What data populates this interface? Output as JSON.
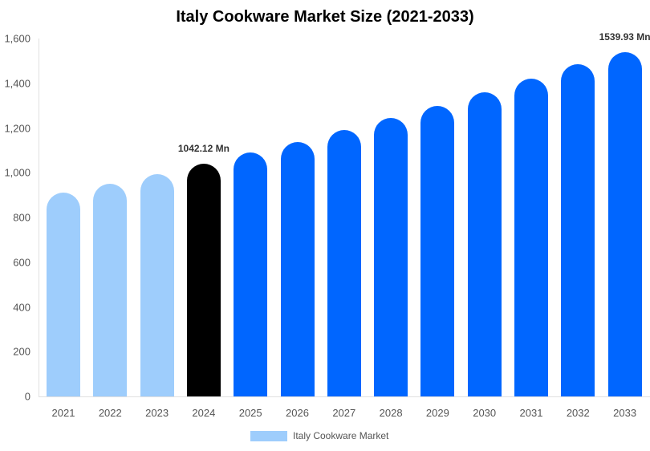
{
  "chart_data": {
    "type": "bar",
    "title": "Italy Cookware Market Size (2021-2033)",
    "xlabel": "",
    "ylabel": "",
    "ylim": [
      0,
      1600
    ],
    "yticks": [
      0,
      200,
      400,
      600,
      800,
      1000,
      1200,
      1400,
      1600
    ],
    "ytick_labels": [
      "0",
      "200",
      "400",
      "600",
      "800",
      "1,000",
      "1,200",
      "1,400",
      "1,600"
    ],
    "categories": [
      "2021",
      "2022",
      "2023",
      "2024",
      "2025",
      "2026",
      "2027",
      "2028",
      "2029",
      "2030",
      "2031",
      "2032",
      "2033"
    ],
    "series": [
      {
        "name": "Italy Cookware Market",
        "values": [
          910,
          952,
          995,
          1042.12,
          1089,
          1139,
          1190,
          1244,
          1300,
          1359,
          1421,
          1485,
          1539.93
        ]
      }
    ],
    "bar_colors": [
      "#9ecdfc",
      "#9ecdfc",
      "#9ecdfc",
      "#000000",
      "#0066ff",
      "#0066ff",
      "#0066ff",
      "#0066ff",
      "#0066ff",
      "#0066ff",
      "#0066ff",
      "#0066ff",
      "#0066ff"
    ],
    "annotations": [
      {
        "category": "2024",
        "text": "1042.12 Mn"
      },
      {
        "category": "2033",
        "text": "1539.93 Mn"
      }
    ],
    "grid": false,
    "legend_position": "bottom"
  },
  "legend": {
    "label": "Italy Cookware Market",
    "color": "#9ecdfc"
  }
}
